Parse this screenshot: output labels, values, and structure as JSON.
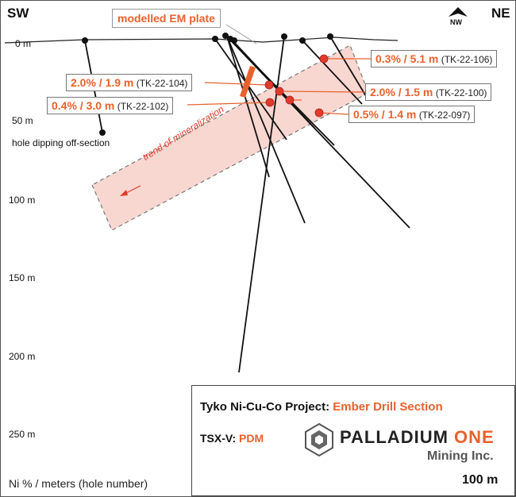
{
  "corners": {
    "left": "SW",
    "right": "NE"
  },
  "north_arrow": {
    "label": "NW",
    "icon": "north-arrow-icon"
  },
  "depth_labels": [
    "0 m",
    "50 m",
    "100 m",
    "150 m",
    "200 m",
    "250 m"
  ],
  "em_plate_label": "modelled EM plate",
  "off_section_label": "hole dipping off-section",
  "trend_label": "trend of mineralization",
  "intercepts": [
    {
      "value": "0.3% / 5.1 m",
      "hole": "(TK-22-106)"
    },
    {
      "value": "2.0% / 1.9 m",
      "hole": "(TK-22-104)"
    },
    {
      "value": "2.0% / 1.5 m",
      "hole": "(TK-22-100)"
    },
    {
      "value": "0.4% / 3.0 m",
      "hole": "(TK-22-102)"
    },
    {
      "value": "0.5% / 1.4 m",
      "hole": "(TK-22-097)"
    }
  ],
  "legend": {
    "project_prefix": "Tyko Ni-Cu-Co Project:",
    "project_name": "Ember Drill Section",
    "ticker_prefix": "TSX-V:",
    "ticker": "PDM",
    "company_a": "PALLADIUM",
    "company_b": "ONE",
    "company_sub": "Mining Inc.",
    "scale_label": "100 m"
  },
  "axis_note": "Ni % / meters (hole number)",
  "colors": {
    "accent": "#e8612c",
    "zone": "#f6c9c0",
    "marker": "#e03a2a"
  }
}
